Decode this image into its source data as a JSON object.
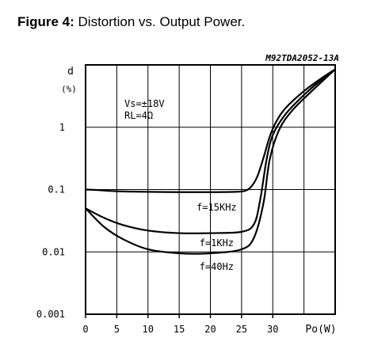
{
  "figure": {
    "label": "Figure 4:",
    "caption": "Distortion vs. Output Power."
  },
  "chart_data": {
    "type": "line",
    "code": "M92TDA2052-13A",
    "ylabel_line1": "d",
    "ylabel_line2": "(%)",
    "xlabel": "Po(W)",
    "yscale": "log",
    "xlim": [
      0,
      40
    ],
    "ylim": [
      0.001,
      10
    ],
    "grid": true,
    "yticks": [
      {
        "value": 1,
        "label": "1"
      },
      {
        "value": 0.1,
        "label": "0.1"
      },
      {
        "value": 0.01,
        "label": "0.01"
      },
      {
        "value": 0.001,
        "label": "0.001"
      }
    ],
    "xticks": [
      {
        "value": 0,
        "label": "0"
      },
      {
        "value": 5,
        "label": "5"
      },
      {
        "value": 10,
        "label": "10"
      },
      {
        "value": 15,
        "label": "15"
      },
      {
        "value": 20,
        "label": "20"
      },
      {
        "value": 25,
        "label": "25"
      },
      {
        "value": 30,
        "label": "30"
      }
    ],
    "conditions": [
      "Vs=±18V",
      "RL=4Ω"
    ],
    "series": [
      {
        "name": "f=15KHz",
        "x": [
          0,
          2,
          5,
          10,
          15,
          20,
          24,
          25.5,
          26.5,
          27.5,
          28.5,
          29.5,
          30.5,
          32,
          35,
          38,
          40
        ],
        "y": [
          0.1,
          0.098,
          0.094,
          0.092,
          0.091,
          0.091,
          0.092,
          0.095,
          0.11,
          0.16,
          0.32,
          0.7,
          1.2,
          2.0,
          3.8,
          6.3,
          8.5
        ]
      },
      {
        "name": "f=1KHz",
        "x": [
          0,
          3,
          6,
          10,
          15,
          20,
          25,
          27,
          28,
          29,
          30,
          32,
          35,
          38,
          40
        ],
        "y": [
          0.05,
          0.035,
          0.027,
          0.022,
          0.02,
          0.02,
          0.021,
          0.028,
          0.07,
          0.3,
          0.75,
          1.6,
          3.3,
          6.0,
          8.5
        ]
      },
      {
        "name": "f=40Hz",
        "x": [
          0,
          3,
          6,
          10,
          15,
          20,
          25,
          27,
          28.5,
          29.5,
          31,
          33,
          36,
          40
        ],
        "y": [
          0.05,
          0.025,
          0.016,
          0.011,
          0.0095,
          0.0095,
          0.011,
          0.017,
          0.06,
          0.3,
          0.9,
          1.8,
          3.6,
          8.5
        ]
      }
    ]
  }
}
